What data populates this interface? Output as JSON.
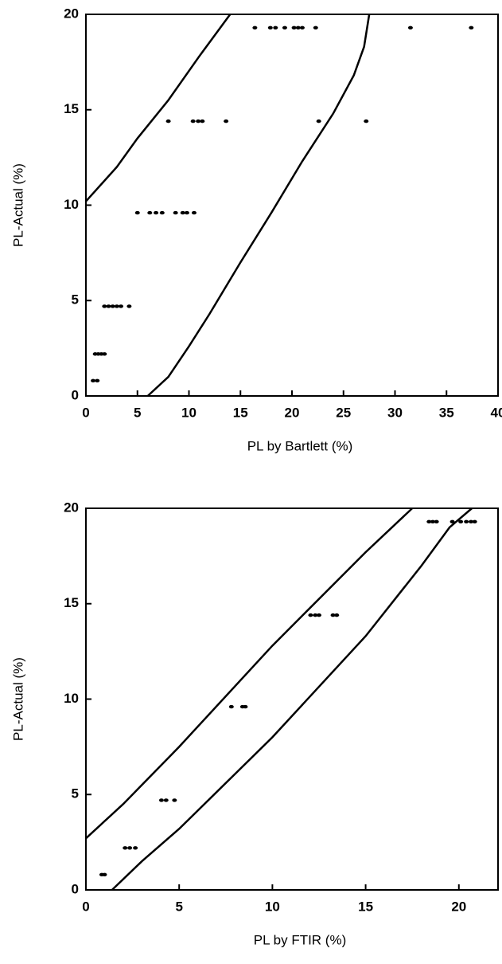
{
  "chart_data": [
    {
      "type": "scatter",
      "xlabel": "PL by Bartlett (%)",
      "ylabel": "PL-Actual (%)",
      "xlim": [
        0,
        40
      ],
      "ylim": [
        0,
        20
      ],
      "xticks": [
        0,
        5,
        10,
        15,
        20,
        25,
        30,
        35,
        40
      ],
      "yticks": [
        0,
        5,
        10,
        15,
        20
      ],
      "series": [
        {
          "mode": "markers",
          "color": "#000000",
          "x": [
            0.7,
            1.1,
            0.9,
            1.2,
            1.5,
            1.8,
            1.8,
            2.2,
            2.6,
            3.0,
            3.4,
            4.2,
            5.0,
            6.2,
            6.8,
            7.4,
            8.7,
            9.4,
            9.8,
            10.5,
            8.0,
            10.4,
            10.9,
            11.3,
            13.6,
            22.6,
            27.2,
            16.4,
            17.9,
            18.4,
            19.3,
            20.2,
            20.6,
            21.0,
            22.3,
            31.5,
            37.4
          ],
          "values": [
            0.8,
            0.8,
            2.2,
            2.2,
            2.2,
            2.2,
            4.7,
            4.7,
            4.7,
            4.7,
            4.7,
            4.7,
            9.6,
            9.6,
            9.6,
            9.6,
            9.6,
            9.6,
            9.6,
            9.6,
            14.4,
            14.4,
            14.4,
            14.4,
            14.4,
            14.4,
            14.4,
            19.3,
            19.3,
            19.3,
            19.3,
            19.3,
            19.3,
            19.3,
            19.3,
            19.3,
            19.3
          ]
        },
        {
          "mode": "line",
          "color": "#000000",
          "x": [
            0,
            3,
            5,
            8,
            11,
            14
          ],
          "values": [
            10.2,
            12,
            13.5,
            15.5,
            17.8,
            20
          ]
        },
        {
          "mode": "line",
          "color": "#000000",
          "x": [
            6,
            8,
            10,
            12,
            15,
            18,
            21,
            24,
            26,
            27,
            27.5
          ],
          "values": [
            0,
            1,
            2.6,
            4.3,
            7,
            9.6,
            12.3,
            14.8,
            16.8,
            18.3,
            20
          ]
        }
      ]
    },
    {
      "type": "scatter",
      "xlabel": "PL by FTIR (%)",
      "ylabel": "PL-Actual (%)",
      "xlim": [
        0,
        22.1
      ],
      "ylim": [
        0,
        20
      ],
      "xticks": [
        0,
        5,
        10,
        15,
        20
      ],
      "yticks": [
        0,
        5,
        10,
        15,
        20
      ],
      "series": [
        {
          "mode": "markers",
          "color": "#000000",
          "x": [
            0.85,
            1.0,
            2.1,
            2.35,
            2.65,
            4.05,
            4.3,
            4.75,
            7.8,
            8.4,
            8.55,
            12.05,
            12.3,
            12.5,
            13.25,
            13.45,
            18.4,
            18.6,
            18.8,
            19.65,
            20.1,
            20.4,
            20.65,
            20.85
          ],
          "values": [
            0.8,
            0.8,
            2.2,
            2.2,
            2.2,
            4.7,
            4.7,
            4.7,
            9.6,
            9.6,
            9.6,
            14.4,
            14.4,
            14.4,
            14.4,
            14.4,
            19.3,
            19.3,
            19.3,
            19.3,
            19.3,
            19.3,
            19.3,
            19.3
          ]
        },
        {
          "mode": "line",
          "color": "#000000",
          "x": [
            0,
            2,
            5,
            10,
            15,
            17.5
          ],
          "values": [
            2.7,
            4.5,
            7.5,
            12.8,
            17.7,
            20
          ]
        },
        {
          "mode": "line",
          "color": "#000000",
          "x": [
            1.4,
            3,
            5,
            10,
            15,
            18,
            19.5,
            20.7
          ],
          "values": [
            0,
            1.5,
            3.2,
            8,
            13.3,
            17,
            19,
            20
          ]
        }
      ]
    }
  ]
}
